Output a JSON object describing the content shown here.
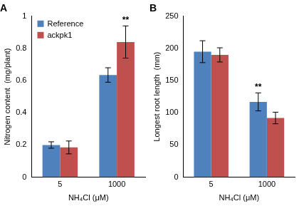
{
  "chart_data": [
    {
      "type": "bar",
      "title": "A",
      "categories": [
        "5",
        "1000"
      ],
      "x_label": "NH₄Cl (μM)",
      "y_label": "Nitrogen content  (mg/plant)",
      "series": [
        {
          "name": "Reference",
          "color": "#4f81bd",
          "values": [
            0.2,
            0.635
          ],
          "error": [
            0.02,
            0.045
          ]
        },
        {
          "name": "ackpk1",
          "color": "#c0504d",
          "values": [
            0.185,
            0.84
          ],
          "error": [
            0.04,
            0.1
          ]
        }
      ],
      "ylim": [
        0,
        1
      ],
      "yticks": [
        0,
        0.2,
        0.4,
        0.6,
        0.8,
        1
      ],
      "grid": false,
      "legend": "upper left",
      "annotations": [
        {
          "text": "**",
          "category": "1000",
          "series": "ackpk1"
        }
      ]
    },
    {
      "type": "bar",
      "title": "B",
      "categories": [
        "5",
        "1000"
      ],
      "x_label": "NH₄Cl (μM)",
      "y_label": "Longest root length  (mm)",
      "series": [
        {
          "name": "Reference",
          "color": "#4f81bd",
          "values": [
            195,
            117
          ],
          "error": [
            17,
            14
          ]
        },
        {
          "name": "ackpk1",
          "color": "#c0504d",
          "values": [
            190,
            92
          ],
          "error": [
            11,
            9
          ]
        }
      ],
      "ylim": [
        0,
        250
      ],
      "yticks": [
        0,
        50,
        100,
        150,
        200,
        250
      ],
      "grid": false,
      "annotations": [
        {
          "text": "**",
          "category": "1000",
          "series": "Reference"
        }
      ]
    }
  ]
}
